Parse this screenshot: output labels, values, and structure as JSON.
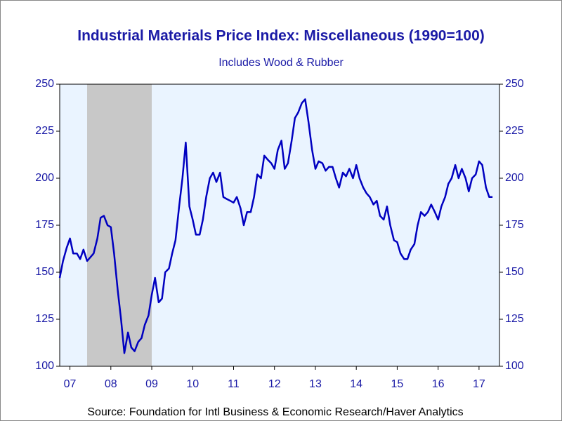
{
  "chart_data": {
    "type": "line",
    "title": "Industrial Materials Price Index: Miscellaneous (1990=100)",
    "subtitle": "Includes Wood & Rubber",
    "source": "Source:  Foundation for Intl Business & Economic Research/Haver Analytics",
    "xlim": [
      2007.25,
      2018.0
    ],
    "ylim": [
      100,
      250
    ],
    "yticks": [
      100,
      125,
      150,
      175,
      200,
      225,
      250
    ],
    "y2lim": [
      100,
      250
    ],
    "y2ticks": [
      100,
      125,
      150,
      175,
      200,
      225,
      250
    ],
    "xticks": [
      {
        "value": 2007.5,
        "label": "07"
      },
      {
        "value": 2008.5,
        "label": "08"
      },
      {
        "value": 2009.5,
        "label": "09"
      },
      {
        "value": 2010.5,
        "label": "10"
      },
      {
        "value": 2011.5,
        "label": "11"
      },
      {
        "value": 2012.5,
        "label": "12"
      },
      {
        "value": 2013.5,
        "label": "13"
      },
      {
        "value": 2014.5,
        "label": "14"
      },
      {
        "value": 2015.5,
        "label": "15"
      },
      {
        "value": 2016.5,
        "label": "16"
      },
      {
        "value": 2017.5,
        "label": "17"
      }
    ],
    "shaded_periods": [
      [
        2007.92,
        2009.5
      ]
    ],
    "background": "#eaf4ff",
    "shade_color": "#c8c8c8",
    "x": [
      2007.25,
      2007.33,
      2007.42,
      2007.5,
      2007.58,
      2007.67,
      2007.75,
      2007.83,
      2007.92,
      2008.0,
      2008.08,
      2008.17,
      2008.25,
      2008.33,
      2008.42,
      2008.5,
      2008.58,
      2008.67,
      2008.75,
      2008.83,
      2008.92,
      2009.0,
      2009.08,
      2009.17,
      2009.25,
      2009.33,
      2009.42,
      2009.5,
      2009.58,
      2009.67,
      2009.75,
      2009.83,
      2009.92,
      2010.0,
      2010.08,
      2010.17,
      2010.25,
      2010.33,
      2010.42,
      2010.5,
      2010.58,
      2010.67,
      2010.75,
      2010.83,
      2010.92,
      2011.0,
      2011.08,
      2011.17,
      2011.25,
      2011.33,
      2011.42,
      2011.5,
      2011.58,
      2011.67,
      2011.75,
      2011.83,
      2011.92,
      2012.0,
      2012.08,
      2012.17,
      2012.25,
      2012.33,
      2012.42,
      2012.5,
      2012.58,
      2012.67,
      2012.75,
      2012.83,
      2012.92,
      2013.0,
      2013.08,
      2013.17,
      2013.25,
      2013.33,
      2013.42,
      2013.5,
      2013.58,
      2013.67,
      2013.75,
      2013.83,
      2013.92,
      2014.0,
      2014.08,
      2014.17,
      2014.25,
      2014.33,
      2014.42,
      2014.5,
      2014.58,
      2014.67,
      2014.75,
      2014.83,
      2014.92,
      2015.0,
      2015.08,
      2015.17,
      2015.25,
      2015.33,
      2015.42,
      2015.5,
      2015.58,
      2015.67,
      2015.75,
      2015.83,
      2015.92,
      2016.0,
      2016.08,
      2016.17,
      2016.25,
      2016.33,
      2016.42,
      2016.5,
      2016.58,
      2016.67,
      2016.75,
      2016.83,
      2016.92,
      2017.0,
      2017.08,
      2017.17,
      2017.25,
      2017.33,
      2017.42,
      2017.5,
      2017.58,
      2017.67,
      2017.75,
      2017.83
    ],
    "series": [
      {
        "name": "Miscellaneous",
        "color": "#0000c0",
        "values": [
          147,
          156,
          163,
          168,
          160,
          160,
          157,
          162,
          156,
          158,
          160,
          168,
          179,
          180,
          175,
          174,
          160,
          140,
          125,
          107,
          118,
          110,
          108,
          113,
          115,
          122,
          127,
          138,
          147,
          134,
          136,
          150,
          152,
          160,
          167,
          185,
          200,
          219,
          185,
          178,
          170,
          170,
          178,
          190,
          200,
          203,
          198,
          203,
          190,
          189,
          188,
          187,
          190,
          184,
          175,
          182,
          182,
          190,
          202,
          200,
          212,
          210,
          208,
          205,
          215,
          220,
          205,
          208,
          220,
          232,
          235,
          240,
          242,
          230,
          215,
          205,
          209,
          208,
          204,
          206,
          206,
          200,
          195,
          203,
          201,
          205,
          200,
          207,
          200,
          195,
          192,
          190,
          186,
          188,
          180,
          178,
          185,
          175,
          167,
          166,
          160,
          157,
          157,
          162,
          165,
          175,
          182,
          180,
          182,
          186,
          182,
          178,
          185,
          190,
          197,
          200,
          207,
          200,
          205,
          200,
          193,
          200,
          202,
          209,
          207,
          195,
          190,
          190
        ]
      }
    ]
  }
}
